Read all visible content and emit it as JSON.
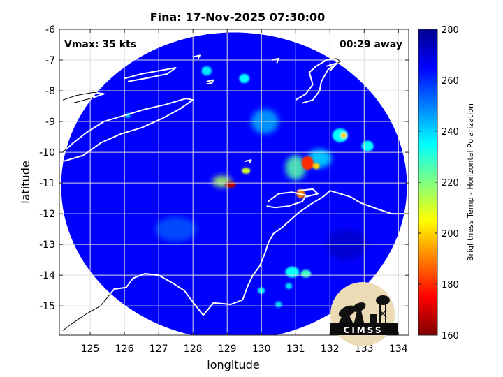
{
  "chart_data": {
    "type": "heatmap",
    "title": "Fina: 17-Nov-2025 07:30:00",
    "annotations": {
      "vmax": "Vmax: 35 kts",
      "time_away": "00:29 away"
    },
    "xlabel": "longitude",
    "ylabel": "latitude",
    "xlim": [
      124.1,
      134.3
    ],
    "ylim": [
      -15.95,
      -6.0
    ],
    "x_ticks": [
      125,
      126,
      127,
      128,
      129,
      130,
      131,
      132,
      133,
      134
    ],
    "y_ticks": [
      -6,
      -7,
      -8,
      -9,
      -10,
      -11,
      -12,
      -13,
      -14,
      -15
    ],
    "x_tick_labels": [
      "125",
      "126",
      "127",
      "128",
      "129",
      "130",
      "131",
      "132",
      "133",
      "134"
    ],
    "y_tick_labels": [
      "-6",
      "-7",
      "-8",
      "-9",
      "-10",
      "-11",
      "-12",
      "-13",
      "-14",
      "-15"
    ],
    "grid": true,
    "swath": {
      "center": [
        129.2,
        -11.1
      ],
      "radius_deg_lon": 5.05,
      "radius_deg_lat": 5.0,
      "background_value": 265
    },
    "features": [
      {
        "lon": 129.1,
        "lat": -11.05,
        "value": 165,
        "size_lon": 0.32,
        "size_lat": 0.22
      },
      {
        "lon": 128.85,
        "lat": -10.95,
        "value": 215,
        "size_lon": 0.55,
        "size_lat": 0.38
      },
      {
        "lon": 129.55,
        "lat": -10.6,
        "value": 210,
        "size_lon": 0.25,
        "size_lat": 0.2
      },
      {
        "lon": 131.35,
        "lat": -10.35,
        "value": 180,
        "size_lon": 0.35,
        "size_lat": 0.45
      },
      {
        "lon": 131.15,
        "lat": -11.35,
        "value": 190,
        "size_lon": 0.25,
        "size_lat": 0.3
      },
      {
        "lon": 131.6,
        "lat": -10.45,
        "value": 200,
        "size_lon": 0.2,
        "size_lat": 0.2
      },
      {
        "lon": 131.0,
        "lat": -10.5,
        "value": 225,
        "size_lon": 0.6,
        "size_lat": 0.8
      },
      {
        "lon": 132.4,
        "lat": -9.45,
        "value": 200,
        "size_lon": 0.18,
        "size_lat": 0.18
      },
      {
        "lon": 132.3,
        "lat": -9.45,
        "value": 235,
        "size_lon": 0.45,
        "size_lat": 0.45
      },
      {
        "lon": 133.1,
        "lat": -9.8,
        "value": 235,
        "size_lon": 0.35,
        "size_lat": 0.35
      },
      {
        "lon": 129.5,
        "lat": -7.6,
        "value": 235,
        "size_lon": 0.3,
        "size_lat": 0.3
      },
      {
        "lon": 128.4,
        "lat": -7.35,
        "value": 238,
        "size_lon": 0.3,
        "size_lat": 0.3
      },
      {
        "lon": 126.1,
        "lat": -8.8,
        "value": 240,
        "size_lon": 0.15,
        "size_lat": 0.15
      },
      {
        "lon": 130.9,
        "lat": -13.9,
        "value": 235,
        "size_lon": 0.4,
        "size_lat": 0.35
      },
      {
        "lon": 131.3,
        "lat": -13.95,
        "value": 228,
        "size_lon": 0.3,
        "size_lat": 0.25
      },
      {
        "lon": 130.8,
        "lat": -14.35,
        "value": 240,
        "size_lon": 0.2,
        "size_lat": 0.2
      },
      {
        "lon": 130.0,
        "lat": -14.5,
        "value": 235,
        "size_lon": 0.2,
        "size_lat": 0.2
      },
      {
        "lon": 130.5,
        "lat": -14.95,
        "value": 240,
        "size_lon": 0.2,
        "size_lat": 0.2
      },
      {
        "lon": 131.7,
        "lat": -10.2,
        "value": 238,
        "size_lon": 0.7,
        "size_lat": 0.6
      },
      {
        "lon": 130.1,
        "lat": -9.0,
        "value": 245,
        "size_lon": 0.8,
        "size_lat": 0.8
      },
      {
        "lon": 127.5,
        "lat": -12.5,
        "value": 255,
        "size_lon": 1.2,
        "size_lat": 0.8
      },
      {
        "lon": 132.5,
        "lat": -13.0,
        "value": 272,
        "size_lon": 1.2,
        "size_lat": 1.0
      }
    ],
    "coastlines": [
      [
        [
          124.2,
          -10.3
        ],
        [
          124.8,
          -10.1
        ],
        [
          125.3,
          -9.7
        ],
        [
          125.9,
          -9.4
        ],
        [
          126.5,
          -9.2
        ],
        [
          127.1,
          -8.9
        ],
        [
          127.6,
          -8.6
        ],
        [
          128.0,
          -8.3
        ],
        [
          127.8,
          -8.25
        ],
        [
          127.2,
          -8.45
        ],
        [
          126.6,
          -8.6
        ],
        [
          126.0,
          -8.8
        ],
        [
          125.4,
          -9.0
        ],
        [
          124.9,
          -9.35
        ],
        [
          124.5,
          -9.7
        ],
        [
          124.2,
          -10.0
        ]
      ],
      [
        [
          124.2,
          -8.3
        ],
        [
          124.6,
          -8.15
        ],
        [
          125.1,
          -8.05
        ],
        [
          125.4,
          -8.1
        ],
        [
          125.0,
          -8.25
        ],
        [
          124.5,
          -8.4
        ]
      ],
      [
        [
          126.0,
          -7.6
        ],
        [
          126.5,
          -7.45
        ],
        [
          127.0,
          -7.35
        ],
        [
          127.5,
          -7.25
        ],
        [
          127.25,
          -7.45
        ],
        [
          126.6,
          -7.6
        ],
        [
          126.1,
          -7.7
        ]
      ],
      [
        [
          128.4,
          -7.7
        ],
        [
          128.6,
          -7.65
        ],
        [
          128.55,
          -7.75
        ],
        [
          128.4,
          -7.78
        ]
      ],
      [
        [
          128.0,
          -6.9
        ],
        [
          128.2,
          -6.85
        ],
        [
          128.15,
          -6.95
        ]
      ],
      [
        [
          130.3,
          -7.0
        ],
        [
          130.5,
          -6.95
        ],
        [
          130.45,
          -7.1
        ]
      ],
      [
        [
          129.5,
          -10.3
        ],
        [
          129.7,
          -10.25
        ],
        [
          129.65,
          -10.35
        ]
      ],
      [
        [
          131.0,
          -8.3
        ],
        [
          131.3,
          -8.1
        ],
        [
          131.5,
          -7.8
        ],
        [
          131.4,
          -7.4
        ],
        [
          131.6,
          -7.2
        ],
        [
          131.9,
          -7.0
        ],
        [
          132.2,
          -6.95
        ],
        [
          132.3,
          -7.05
        ],
        [
          131.95,
          -7.3
        ],
        [
          131.75,
          -7.7
        ],
        [
          131.7,
          -8.0
        ],
        [
          131.5,
          -8.3
        ],
        [
          131.2,
          -8.4
        ]
      ],
      [
        [
          131.9,
          -7.2
        ],
        [
          132.2,
          -7.1
        ],
        [
          132.0,
          -7.35
        ]
      ],
      [
        [
          130.2,
          -11.6
        ],
        [
          130.5,
          -11.35
        ],
        [
          130.9,
          -11.3
        ],
        [
          131.3,
          -11.4
        ],
        [
          131.2,
          -11.6
        ],
        [
          130.8,
          -11.75
        ],
        [
          130.4,
          -11.8
        ],
        [
          130.15,
          -11.75
        ]
      ],
      [
        [
          131.05,
          -11.25
        ],
        [
          131.5,
          -11.2
        ],
        [
          131.65,
          -11.35
        ],
        [
          131.3,
          -11.45
        ]
      ],
      [
        [
          134.3,
          -12.0
        ],
        [
          133.8,
          -12.0
        ],
        [
          133.4,
          -11.85
        ],
        [
          132.9,
          -11.65
        ],
        [
          132.6,
          -11.45
        ],
        [
          132.3,
          -11.35
        ],
        [
          132.0,
          -11.25
        ],
        [
          131.8,
          -11.45
        ],
        [
          131.5,
          -11.65
        ],
        [
          131.1,
          -11.95
        ],
        [
          130.8,
          -12.25
        ],
        [
          130.6,
          -12.45
        ],
        [
          130.35,
          -12.65
        ],
        [
          130.2,
          -12.95
        ],
        [
          130.1,
          -13.3
        ],
        [
          129.95,
          -13.7
        ],
        [
          129.75,
          -14.0
        ],
        [
          129.6,
          -14.35
        ],
        [
          129.45,
          -14.8
        ],
        [
          129.1,
          -14.95
        ],
        [
          128.6,
          -14.9
        ],
        [
          128.3,
          -15.3
        ],
        [
          128.05,
          -14.95
        ],
        [
          127.75,
          -14.5
        ],
        [
          127.4,
          -14.25
        ],
        [
          127.0,
          -14.0
        ],
        [
          126.6,
          -13.95
        ],
        [
          126.25,
          -14.1
        ],
        [
          126.05,
          -14.4
        ],
        [
          125.7,
          -14.45
        ],
        [
          125.3,
          -15.0
        ],
        [
          124.9,
          -15.25
        ],
        [
          124.5,
          -15.55
        ],
        [
          124.2,
          -15.8
        ]
      ]
    ],
    "colorbar": {
      "label": "Brightness Temp - Horizontal Polarization",
      "range": [
        160,
        280
      ],
      "ticks": [
        "280",
        "260",
        "240",
        "220",
        "200",
        "180",
        "160"
      ],
      "colors": [
        "#7f0000",
        "#ff0000",
        "#ff8000",
        "#ffff00",
        "#80ff80",
        "#00ffff",
        "#0080ff",
        "#0000ff",
        "#00008f"
      ]
    },
    "logo_text": "CIMSS"
  }
}
